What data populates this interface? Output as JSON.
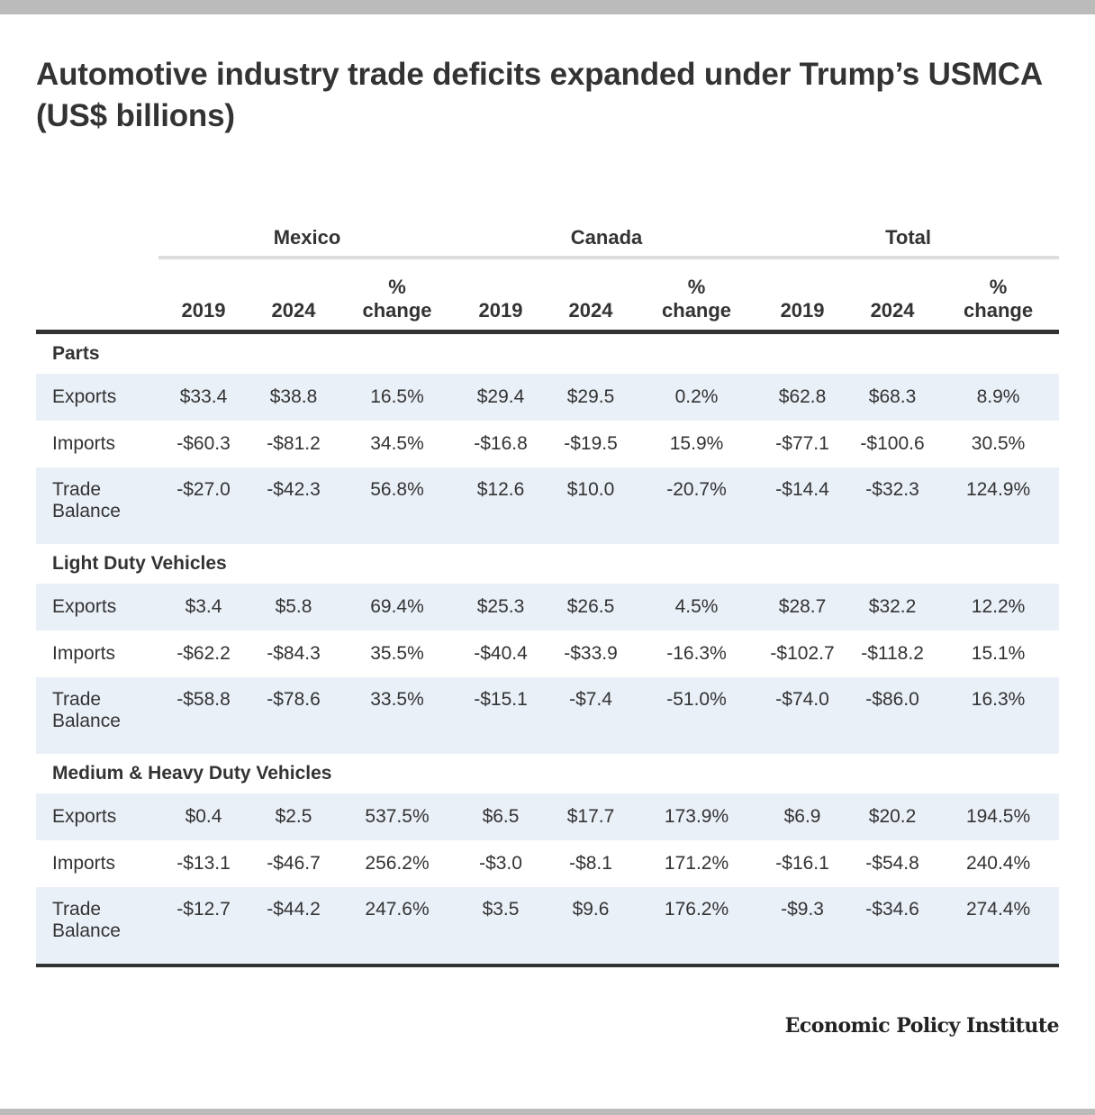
{
  "title": "Automotive industry trade deficits expanded under Trump’s USMCA (US$ billions)",
  "header": {
    "groups": [
      "Mexico",
      "Canada",
      "Total"
    ],
    "subcolumns": [
      {
        "line1": "",
        "line2": "2019"
      },
      {
        "line1": "",
        "line2": "2024"
      },
      {
        "line1": "%",
        "line2": "change"
      }
    ]
  },
  "colors": {
    "text": "#333333",
    "row_shade": "#eaf0f8",
    "rule_light": "#dddddd",
    "rule_dark": "#333333",
    "frame_bar": "#bbbbbb"
  },
  "sections": [
    {
      "name": "Parts",
      "rows": [
        {
          "label": "Exports",
          "values": [
            "$33.4",
            "$38.8",
            "16.5%",
            "$29.4",
            "$29.5",
            "0.2%",
            "$62.8",
            "$68.3",
            "8.9%"
          ]
        },
        {
          "label": "Imports",
          "values": [
            "-$60.3",
            "-$81.2",
            "34.5%",
            "-$16.8",
            "-$19.5",
            "15.9%",
            "-$77.1",
            "-$100.6",
            "30.5%"
          ]
        },
        {
          "label": "Trade Balance",
          "values": [
            "-$27.0",
            "-$42.3",
            "56.8%",
            "$12.6",
            "$10.0",
            "-20.7%",
            "-$14.4",
            "-$32.3",
            "124.9%"
          ]
        }
      ]
    },
    {
      "name": "Light Duty Vehicles",
      "rows": [
        {
          "label": "Exports",
          "values": [
            "$3.4",
            "$5.8",
            "69.4%",
            "$25.3",
            "$26.5",
            "4.5%",
            "$28.7",
            "$32.2",
            "12.2%"
          ]
        },
        {
          "label": "Imports",
          "values": [
            "-$62.2",
            "-$84.3",
            "35.5%",
            "-$40.4",
            "-$33.9",
            "-16.3%",
            "-$102.7",
            "-$118.2",
            "15.1%"
          ]
        },
        {
          "label": "Trade Balance",
          "values": [
            "-$58.8",
            "-$78.6",
            "33.5%",
            "-$15.1",
            "-$7.4",
            "-51.0%",
            "-$74.0",
            "-$86.0",
            "16.3%"
          ]
        }
      ]
    },
    {
      "name": "Medium & Heavy Duty Vehicles",
      "rows": [
        {
          "label": "Exports",
          "values": [
            "$0.4",
            "$2.5",
            "537.5%",
            "$6.5",
            "$17.7",
            "173.9%",
            "$6.9",
            "$20.2",
            "194.5%"
          ]
        },
        {
          "label": "Imports",
          "values": [
            "-$13.1",
            "-$46.7",
            "256.2%",
            "-$3.0",
            "-$8.1",
            "171.2%",
            "-$16.1",
            "-$54.8",
            "240.4%"
          ]
        },
        {
          "label": "Trade Balance",
          "values": [
            "-$12.7",
            "-$44.2",
            "247.6%",
            "$3.5",
            "$9.6",
            "176.2%",
            "-$9.3",
            "-$34.6",
            "274.4%"
          ]
        }
      ]
    }
  ],
  "footer": {
    "brand": "Economic Policy Institute"
  }
}
